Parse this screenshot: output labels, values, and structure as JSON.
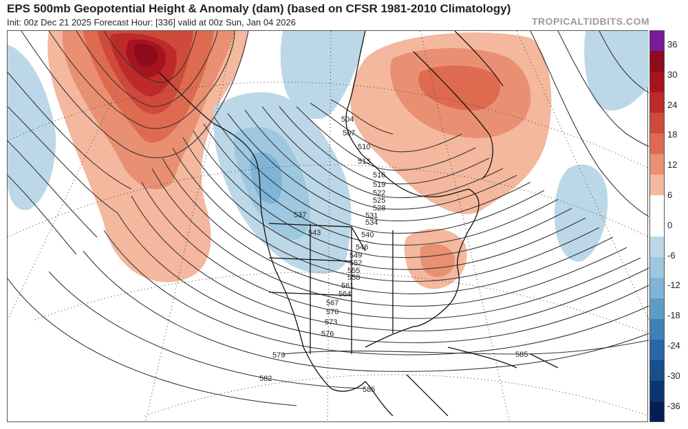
{
  "header": {
    "title": "EPS 500mb Geopotential Height & Anomaly (dam) (based on CFSR 1981-2010 Climatology)",
    "subtitle": "Init: 00z Dec 21 2025   Forecast Hour: [336]   valid at 00z Sun, Jan 04 2026",
    "credit": "TROPICALTIDBITS.COM"
  },
  "colorbar": {
    "labels": [
      "36",
      "30",
      "24",
      "18",
      "12",
      "6",
      "0",
      "-6",
      "-12",
      "-18",
      "-24",
      "-30",
      "-36"
    ],
    "colors": [
      "#7a1a9a",
      "#8e0a1c",
      "#a8141e",
      "#be2a2a",
      "#cf4a3a",
      "#de6b50",
      "#ea9072",
      "#f4b89e",
      "#ffffff",
      "#ffffff",
      "#bcd8e8",
      "#9ec8e0",
      "#80b4d6",
      "#5e9cc8",
      "#3e82b8",
      "#2866a4",
      "#184e8c",
      "#0c3672",
      "#061f52"
    ]
  },
  "contours": {
    "labels": [
      "504",
      "507",
      "510",
      "513",
      "516",
      "519",
      "522",
      "525",
      "528",
      "531",
      "534",
      "537",
      "540",
      "543",
      "546",
      "549",
      "552",
      "555",
      "558",
      "561",
      "564",
      "567",
      "570",
      "573",
      "576",
      "579",
      "582",
      "585",
      "585"
    ]
  },
  "map_colors": {
    "land_line": "#111111",
    "contour": "#333333",
    "grid": "#333333"
  }
}
